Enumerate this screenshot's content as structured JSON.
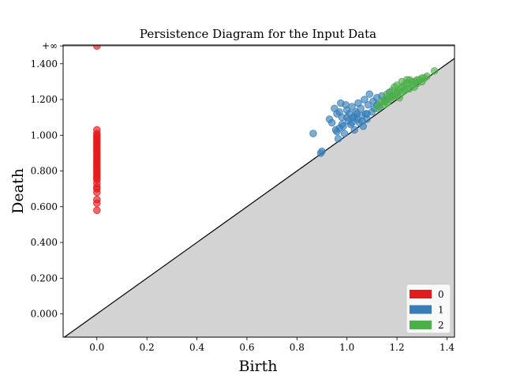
{
  "chart_data": {
    "type": "scatter",
    "title": "Persistence Diagram for the Input Data",
    "xlabel": "Birth",
    "ylabel": "Death",
    "xlim": [
      -0.135,
      1.43
    ],
    "ylim": [
      -0.13,
      1.505
    ],
    "x_ticks": [
      {
        "value": 0.0,
        "label": "0.0"
      },
      {
        "value": 0.2,
        "label": "0.2"
      },
      {
        "value": 0.4,
        "label": "0.4"
      },
      {
        "value": 0.6,
        "label": "0.6"
      },
      {
        "value": 0.8,
        "label": "0.8"
      },
      {
        "value": 1.0,
        "label": "1.0"
      },
      {
        "value": 1.2,
        "label": "1.2"
      },
      {
        "value": 1.4,
        "label": "1.4"
      }
    ],
    "y_ticks": [
      {
        "value": 0.0,
        "label": "0.000"
      },
      {
        "value": 0.2,
        "label": "0.200"
      },
      {
        "value": 0.4,
        "label": "0.400"
      },
      {
        "value": 0.6,
        "label": "0.600"
      },
      {
        "value": 0.8,
        "label": "0.800"
      },
      {
        "value": 1.0,
        "label": "1.000"
      },
      {
        "value": 1.2,
        "label": "1.200"
      },
      {
        "value": 1.4,
        "label": "1.400"
      }
    ],
    "infinity_line": {
      "value": 1.5,
      "label": "+∞"
    },
    "diagonal": true,
    "legend_position": "bottom-right",
    "grid": false,
    "series": [
      {
        "name": "0",
        "color": "#e41a1c",
        "points": [
          [
            0,
            1.5
          ],
          [
            0,
            1.03
          ],
          [
            0,
            1.01
          ],
          [
            0,
            1.0
          ],
          [
            0,
            0.99
          ],
          [
            0,
            0.98
          ],
          [
            0,
            0.97
          ],
          [
            0,
            0.96
          ],
          [
            0,
            0.95
          ],
          [
            0,
            0.94
          ],
          [
            0,
            0.93
          ],
          [
            0,
            0.92
          ],
          [
            0,
            0.91
          ],
          [
            0,
            0.9
          ],
          [
            0,
            0.89
          ],
          [
            0,
            0.88
          ],
          [
            0,
            0.87
          ],
          [
            0,
            0.86
          ],
          [
            0,
            0.85
          ],
          [
            0,
            0.84
          ],
          [
            0,
            0.83
          ],
          [
            0,
            0.82
          ],
          [
            0,
            0.81
          ],
          [
            0,
            0.8
          ],
          [
            0,
            0.79
          ],
          [
            0,
            0.78
          ],
          [
            0,
            0.77
          ],
          [
            0,
            0.76
          ],
          [
            0,
            0.75
          ],
          [
            0,
            0.73
          ],
          [
            0,
            0.71
          ],
          [
            0,
            0.7
          ],
          [
            0,
            0.68
          ],
          [
            0,
            0.64
          ],
          [
            0,
            0.62
          ],
          [
            0,
            0.58
          ]
        ]
      },
      {
        "name": "1",
        "color": "#377eb8",
        "points": [
          [
            0.865,
            1.01
          ],
          [
            0.895,
            0.9
          ],
          [
            0.9,
            0.91
          ],
          [
            0.93,
            1.09
          ],
          [
            0.94,
            1.07
          ],
          [
            0.95,
            1.15
          ],
          [
            0.955,
            1.03
          ],
          [
            0.96,
            1.12
          ],
          [
            0.965,
            0.98
          ],
          [
            0.97,
            1.13
          ],
          [
            0.975,
            1.18
          ],
          [
            0.98,
            1.1
          ],
          [
            0.985,
            1.05
          ],
          [
            0.99,
            1.01
          ],
          [
            0.995,
            1.17
          ],
          [
            1.0,
            1.14
          ],
          [
            1.005,
            1.08
          ],
          [
            1.01,
            1.12
          ],
          [
            1.015,
            1.06
          ],
          [
            1.02,
            1.16
          ],
          [
            1.025,
            1.1
          ],
          [
            1.03,
            1.03
          ],
          [
            1.035,
            1.13
          ],
          [
            1.04,
            1.09
          ],
          [
            1.045,
            1.18
          ],
          [
            1.05,
            1.07
          ],
          [
            1.055,
            1.15
          ],
          [
            1.06,
            1.11
          ],
          [
            1.065,
            1.05
          ],
          [
            1.07,
            1.2
          ],
          [
            1.075,
            1.12
          ],
          [
            1.08,
            1.09
          ],
          [
            1.085,
            1.17
          ],
          [
            1.09,
            1.23
          ],
          [
            1.1,
            1.13
          ],
          [
            1.105,
            1.19
          ],
          [
            1.11,
            1.15
          ],
          [
            1.12,
            1.21
          ],
          [
            1.13,
            1.16
          ],
          [
            1.14,
            1.22
          ],
          [
            1.15,
            1.19
          ],
          [
            1.16,
            1.2
          ],
          [
            1.17,
            1.24
          ],
          [
            1.18,
            1.22
          ],
          [
            1.0,
            1.1
          ],
          [
            1.02,
            1.07
          ],
          [
            1.06,
            1.08
          ],
          [
            0.98,
            1.06
          ],
          [
            1.03,
            1.1
          ],
          [
            1.08,
            1.12
          ],
          [
            0.97,
            1.04
          ],
          [
            1.12,
            1.17
          ],
          [
            0.96,
            1.02
          ],
          [
            1.04,
            1.12
          ]
        ]
      },
      {
        "name": "2",
        "color": "#4daf4a",
        "points": [
          [
            1.12,
            1.15
          ],
          [
            1.14,
            1.19
          ],
          [
            1.15,
            1.17
          ],
          [
            1.16,
            1.23
          ],
          [
            1.17,
            1.2
          ],
          [
            1.18,
            1.25
          ],
          [
            1.19,
            1.22
          ],
          [
            1.2,
            1.28
          ],
          [
            1.2,
            1.24
          ],
          [
            1.21,
            1.21
          ],
          [
            1.22,
            1.27
          ],
          [
            1.22,
            1.3
          ],
          [
            1.23,
            1.25
          ],
          [
            1.24,
            1.29
          ],
          [
            1.25,
            1.26
          ],
          [
            1.25,
            1.31
          ],
          [
            1.26,
            1.28
          ],
          [
            1.27,
            1.3
          ],
          [
            1.27,
            1.27
          ],
          [
            1.28,
            1.29
          ],
          [
            1.29,
            1.31
          ],
          [
            1.3,
            1.32
          ],
          [
            1.31,
            1.32
          ],
          [
            1.32,
            1.33
          ],
          [
            1.35,
            1.36
          ],
          [
            1.19,
            1.27
          ],
          [
            1.21,
            1.25
          ],
          [
            1.23,
            1.28
          ],
          [
            1.18,
            1.21
          ],
          [
            1.24,
            1.26
          ],
          [
            1.26,
            1.3
          ],
          [
            1.28,
            1.31
          ],
          [
            1.2,
            1.23
          ],
          [
            1.15,
            1.2
          ],
          [
            1.17,
            1.22
          ],
          [
            1.3,
            1.3
          ],
          [
            1.22,
            1.24
          ],
          [
            1.24,
            1.31
          ],
          [
            1.16,
            1.18
          ],
          [
            1.13,
            1.17
          ]
        ]
      }
    ]
  }
}
